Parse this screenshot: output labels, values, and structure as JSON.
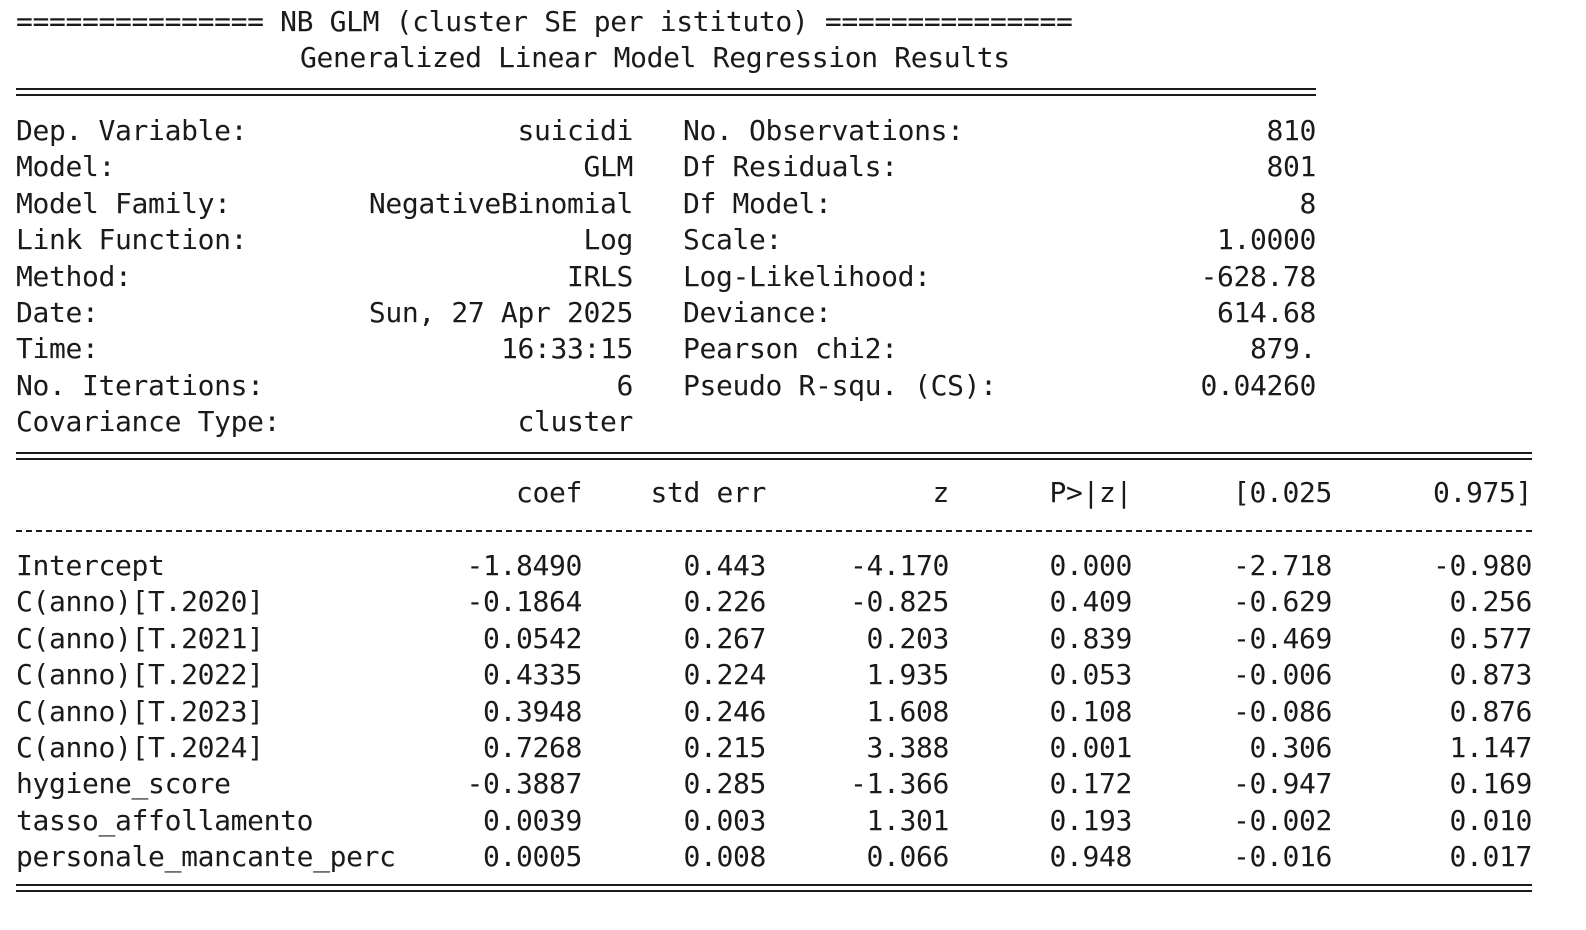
{
  "title_line": "=============== NB GLM (cluster SE per istituto) ===============",
  "subtitle": "Generalized Linear Model Regression Results",
  "summary": {
    "left": [
      {
        "label": "Dep. Variable:",
        "value": "suicidi"
      },
      {
        "label": "Model:",
        "value": "GLM"
      },
      {
        "label": "Model Family:",
        "value": "NegativeBinomial"
      },
      {
        "label": "Link Function:",
        "value": "Log"
      },
      {
        "label": "Method:",
        "value": "IRLS"
      },
      {
        "label": "Date:",
        "value": "Sun, 27 Apr 2025"
      },
      {
        "label": "Time:",
        "value": "16:33:15"
      },
      {
        "label": "No. Iterations:",
        "value": "6"
      },
      {
        "label": "Covariance Type:",
        "value": "cluster"
      }
    ],
    "right": [
      {
        "label": "No. Observations:",
        "value": "810"
      },
      {
        "label": "Df Residuals:",
        "value": "801"
      },
      {
        "label": "Df Model:",
        "value": "8"
      },
      {
        "label": "Scale:",
        "value": "1.0000"
      },
      {
        "label": "Log-Likelihood:",
        "value": "-628.78"
      },
      {
        "label": "Deviance:",
        "value": "614.68"
      },
      {
        "label": "Pearson chi2:",
        "value": "879."
      },
      {
        "label": "Pseudo R-squ. (CS):",
        "value": "0.04260"
      }
    ]
  },
  "coef_table": {
    "headers": [
      "coef",
      "std err",
      "z",
      "P>|z|",
      "[0.025",
      "0.975]"
    ],
    "rows": [
      {
        "name": "Intercept",
        "cells": [
          "-1.8490",
          "0.443",
          "-4.170",
          "0.000",
          "-2.718",
          "-0.980"
        ]
      },
      {
        "name": "C(anno)[T.2020]",
        "cells": [
          "-0.1864",
          "0.226",
          "-0.825",
          "0.409",
          "-0.629",
          "0.256"
        ]
      },
      {
        "name": "C(anno)[T.2021]",
        "cells": [
          "0.0542",
          "0.267",
          "0.203",
          "0.839",
          "-0.469",
          "0.577"
        ]
      },
      {
        "name": "C(anno)[T.2022]",
        "cells": [
          "0.4335",
          "0.224",
          "1.935",
          "0.053",
          "-0.006",
          "0.873"
        ]
      },
      {
        "name": "C(anno)[T.2023]",
        "cells": [
          "0.3948",
          "0.246",
          "1.608",
          "0.108",
          "-0.086",
          "0.876"
        ]
      },
      {
        "name": "C(anno)[T.2024]",
        "cells": [
          "0.7268",
          "0.215",
          "3.388",
          "0.001",
          "0.306",
          "1.147"
        ]
      },
      {
        "name": "hygiene_score",
        "cells": [
          "-0.3887",
          "0.285",
          "-1.366",
          "0.172",
          "-0.947",
          "0.169"
        ]
      },
      {
        "name": "tasso_affollamento",
        "cells": [
          "0.0039",
          "0.003",
          "1.301",
          "0.193",
          "-0.002",
          "0.010"
        ]
      },
      {
        "name": "personale_mancante_perc",
        "cells": [
          "0.0005",
          "0.008",
          "0.066",
          "0.948",
          "-0.016",
          "0.017"
        ]
      }
    ]
  },
  "colors": {
    "text": "#1a1a1a",
    "background": "#ffffff"
  }
}
